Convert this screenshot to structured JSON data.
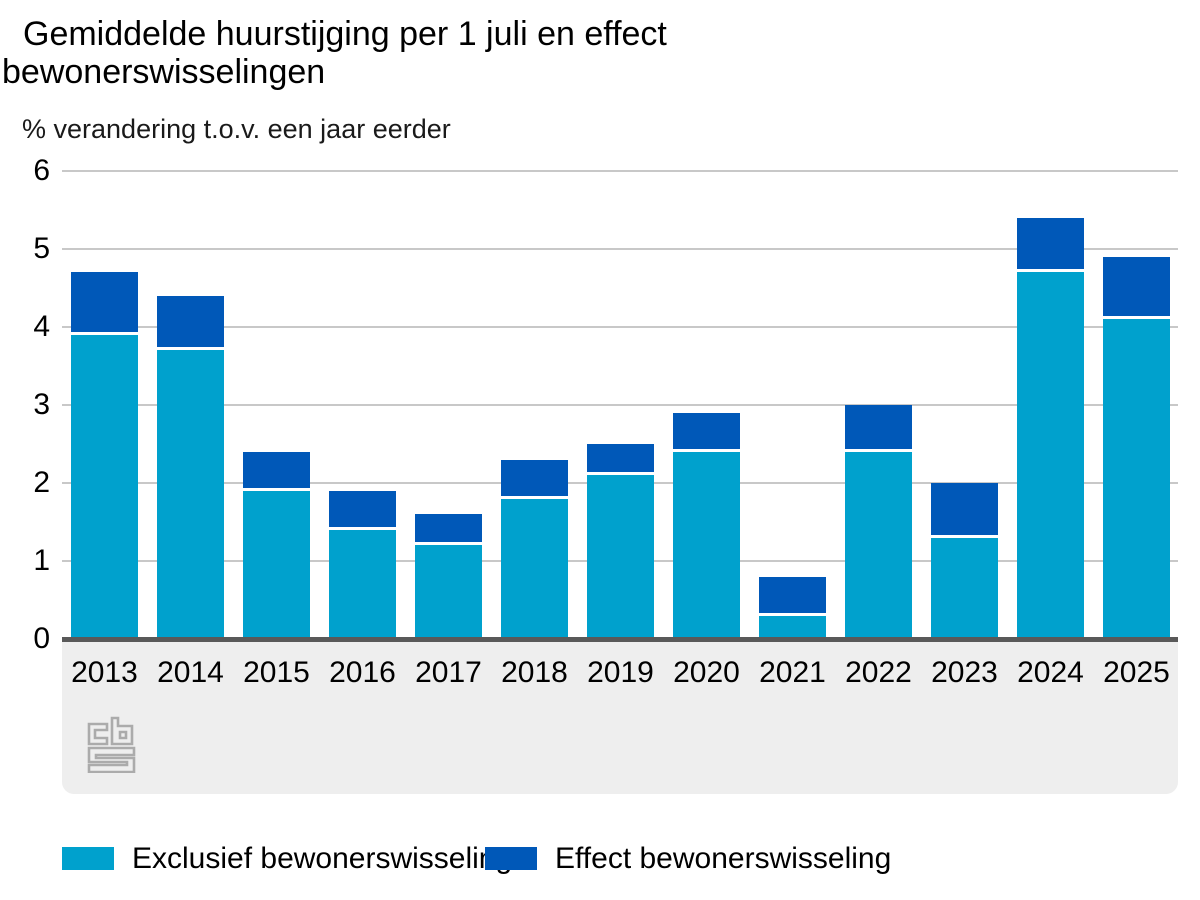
{
  "title": "Gemiddelde huurstijging per 1 juli en effect bewonerswisselingen",
  "subtitle": "% verandering t.o.v. een jaar eerder",
  "legend": [
    {
      "label": "Exclusief bewonerswisseling",
      "color": "#00a1cd"
    },
    {
      "label": "Effect bewonerswisseling",
      "color": "#0058b8"
    }
  ],
  "colors": {
    "light_blue": "#00a1cd",
    "dark_blue": "#0058b8",
    "gridline": "#c8c8c8",
    "zero_axis": "#595959",
    "axis_strip_background": "#eeeeee",
    "logo_gray": "#ababab",
    "segment_divider": "#ffffff"
  },
  "logo": "cbs-logo",
  "chart_data": {
    "type": "bar",
    "stacked": true,
    "categories": [
      "2013",
      "2014",
      "2015",
      "2016",
      "2017",
      "2018",
      "2019",
      "2020",
      "2021",
      "2022",
      "2023",
      "2024",
      "2025"
    ],
    "series": [
      {
        "name": "Exclusief bewonerswisseling",
        "color": "#00a1cd",
        "values": [
          3.9,
          3.7,
          1.9,
          1.4,
          1.2,
          1.8,
          2.1,
          2.4,
          0.3,
          2.4,
          1.3,
          4.7,
          4.1
        ]
      },
      {
        "name": "Effect bewonerswisseling",
        "color": "#0058b8",
        "values": [
          0.8,
          0.7,
          0.5,
          0.5,
          0.4,
          0.5,
          0.4,
          0.5,
          0.5,
          0.6,
          0.7,
          0.7,
          0.8
        ]
      }
    ],
    "totals": [
      4.7,
      4.4,
      2.4,
      1.9,
      1.6,
      2.3,
      2.5,
      2.9,
      0.8,
      3.0,
      2.0,
      5.4,
      4.9
    ],
    "title": "Gemiddelde huurstijging per 1 juli en effect bewonerswisselingen",
    "ylabel": "% verandering t.o.v. een jaar eerder",
    "xlabel": "",
    "ylim": [
      0,
      6
    ],
    "y_ticks": [
      0,
      1,
      2,
      3,
      4,
      5,
      6
    ],
    "grid": true,
    "legend_position": "bottom"
  }
}
